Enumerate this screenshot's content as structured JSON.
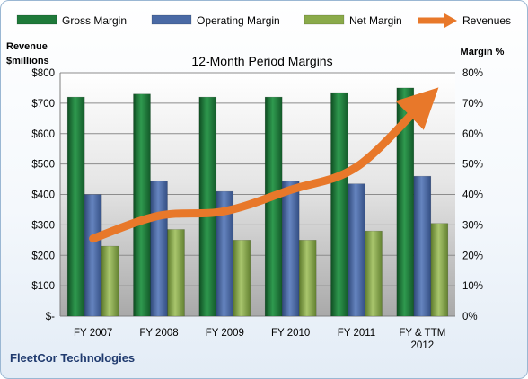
{
  "chart_data": {
    "type": "bar",
    "title": "12-Month Period Margins",
    "categories": [
      "FY 2007",
      "FY 2008",
      "FY 2009",
      "FY 2010",
      "FY 2011",
      "FY & TTM 2012"
    ],
    "series": [
      {
        "name": "Gross Margin",
        "kind": "bar",
        "axis": "right",
        "values": [
          72,
          73,
          72,
          72,
          73.5,
          75
        ],
        "color": "#1f7a3a"
      },
      {
        "name": "Operating Margin",
        "kind": "bar",
        "axis": "right",
        "values": [
          40,
          44.5,
          41,
          44.5,
          43.5,
          46
        ],
        "color": "#4a6aa5"
      },
      {
        "name": "Net Margin",
        "kind": "bar",
        "axis": "right",
        "values": [
          23,
          28.5,
          25,
          25,
          28,
          30.5
        ],
        "color": "#8aaa4a"
      },
      {
        "name": "Revenues",
        "kind": "line",
        "axis": "left",
        "values": [
          255,
          330,
          345,
          415,
          490,
          700
        ],
        "color": "#e8782a"
      }
    ],
    "y_left": {
      "label": "Revenue $millions",
      "label_lines": [
        "Revenue",
        "$millions"
      ],
      "range": [
        0,
        800
      ],
      "ticks": [
        "$-",
        "$100",
        "$200",
        "$300",
        "$400",
        "$500",
        "$600",
        "$700",
        "$800"
      ]
    },
    "y_right": {
      "label": "Margin %",
      "range": [
        0,
        80
      ],
      "ticks": [
        "0%",
        "10%",
        "20%",
        "30%",
        "40%",
        "50%",
        "60%",
        "70%",
        "80%"
      ]
    },
    "x_tick_lines": [
      [
        "FY 2007"
      ],
      [
        "FY 2008"
      ],
      [
        "FY 2009"
      ],
      [
        "FY 2010"
      ],
      [
        "FY 2011"
      ],
      [
        "FY & TTM",
        "2012"
      ]
    ],
    "grid": true,
    "legend_position": "top",
    "footer": "FleetCor Technologies"
  }
}
